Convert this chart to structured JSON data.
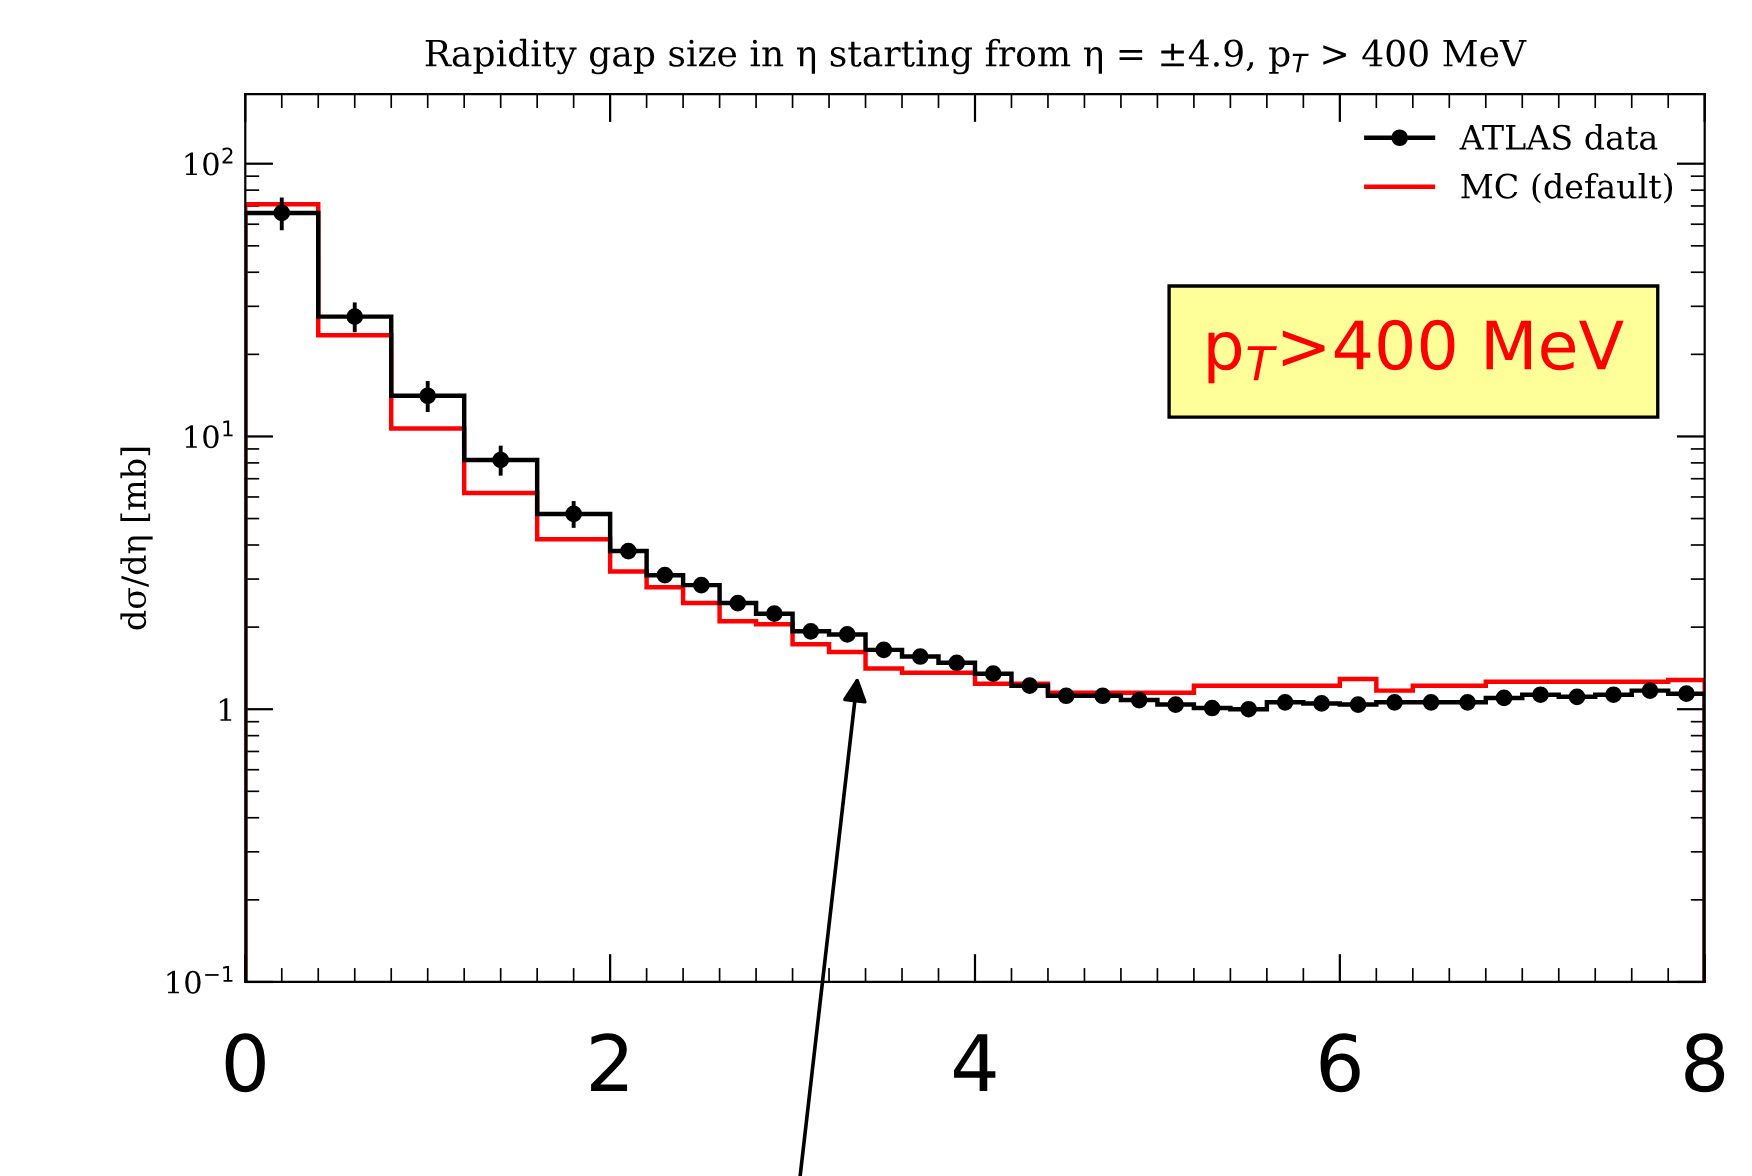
{
  "chart_data": {
    "type": "histogram",
    "title": "Rapidity gap size in η starting from η = ±4.9, p$_{T}$ > 400 MeV",
    "ylabel": "dσ/dη [mb]",
    "bins": [
      0,
      0.4,
      0.8,
      1.2,
      1.6,
      2.0,
      2.2,
      2.4,
      2.6,
      2.8,
      3.0,
      3.2,
      3.4,
      3.6,
      3.8,
      4.0,
      4.2,
      4.4,
      4.6,
      4.8,
      5.0,
      5.2,
      5.4,
      5.6,
      5.8,
      6.0,
      6.2,
      6.4,
      6.6,
      6.8,
      7.0,
      7.2,
      7.4,
      7.6,
      7.8,
      8.0
    ],
    "series": [
      {
        "color": "#000000",
        "values": [
          66,
          27.5,
          14.1,
          8.2,
          5.2,
          3.8,
          3.1,
          2.85,
          2.45,
          2.24,
          1.93,
          1.88,
          1.65,
          1.56,
          1.48,
          1.35,
          1.22,
          1.12,
          1.12,
          1.08,
          1.04,
          1.01,
          1.0,
          1.06,
          1.05,
          1.04,
          1.06,
          1.06,
          1.06,
          1.1,
          1.13,
          1.11,
          1.13,
          1.17,
          1.14
        ]
      },
      {
        "name": "ATLAS data",
        "type": "scatter",
        "color": "#000000",
        "marker": "circle",
        "x": [
          0.2,
          0.6,
          1.0,
          1.4,
          1.8,
          2.1,
          2.3,
          2.5,
          2.7,
          2.9,
          3.1,
          3.3,
          3.5,
          3.7,
          3.9,
          4.1,
          4.3,
          4.5,
          4.7,
          4.9,
          5.1,
          5.3,
          5.5,
          5.7,
          5.9,
          6.1,
          6.3,
          6.5,
          6.7,
          6.9,
          7.1,
          7.3,
          7.5,
          7.7,
          7.9
        ],
        "values": [
          66,
          27.5,
          14.1,
          8.2,
          5.2,
          3.8,
          3.1,
          2.85,
          2.45,
          2.24,
          1.93,
          1.88,
          1.65,
          1.56,
          1.48,
          1.35,
          1.22,
          1.12,
          1.12,
          1.08,
          1.04,
          1.01,
          1.0,
          1.06,
          1.05,
          1.04,
          1.06,
          1.06,
          1.06,
          1.1,
          1.13,
          1.11,
          1.13,
          1.17,
          1.14
        ],
        "errors": [
          8,
          3,
          1.6,
          0.9,
          0.5,
          null,
          null,
          null,
          null,
          null,
          null,
          null,
          null,
          null,
          null,
          null,
          null,
          null,
          null,
          null,
          null,
          null,
          null,
          null,
          null,
          null,
          null,
          null,
          null,
          null,
          null,
          null,
          null,
          null,
          null
        ]
      },
      {
        "name": "MC (default)",
        "color": "#ff0000",
        "values": [
          71,
          23.5,
          10.7,
          6.2,
          4.2,
          3.2,
          2.8,
          2.45,
          2.1,
          2.05,
          1.73,
          1.62,
          1.41,
          1.36,
          1.36,
          1.24,
          1.24,
          1.15,
          1.15,
          1.15,
          1.15,
          1.22,
          1.22,
          1.22,
          1.22,
          1.29,
          1.17,
          1.22,
          1.22,
          1.26,
          1.26,
          1.26,
          1.26,
          1.26,
          1.28
        ]
      }
    ],
    "log": "y",
    "xlim": [
      0,
      8
    ],
    "xticks": [
      0,
      2,
      4,
      6,
      8
    ],
    "ylim": [
      0.1,
      180
    ],
    "yticks": [
      {
        "value": 0.1,
        "label": "10$^{−1}$"
      },
      {
        "value": 1,
        "label": "1"
      },
      {
        "value": 10,
        "label": "10$^{1}$"
      },
      {
        "value": 100,
        "label": "10$^{2}$"
      }
    ],
    "legend": "top right",
    "annotations": [
      "p$_{T}$>400 MeV"
    ]
  }
}
